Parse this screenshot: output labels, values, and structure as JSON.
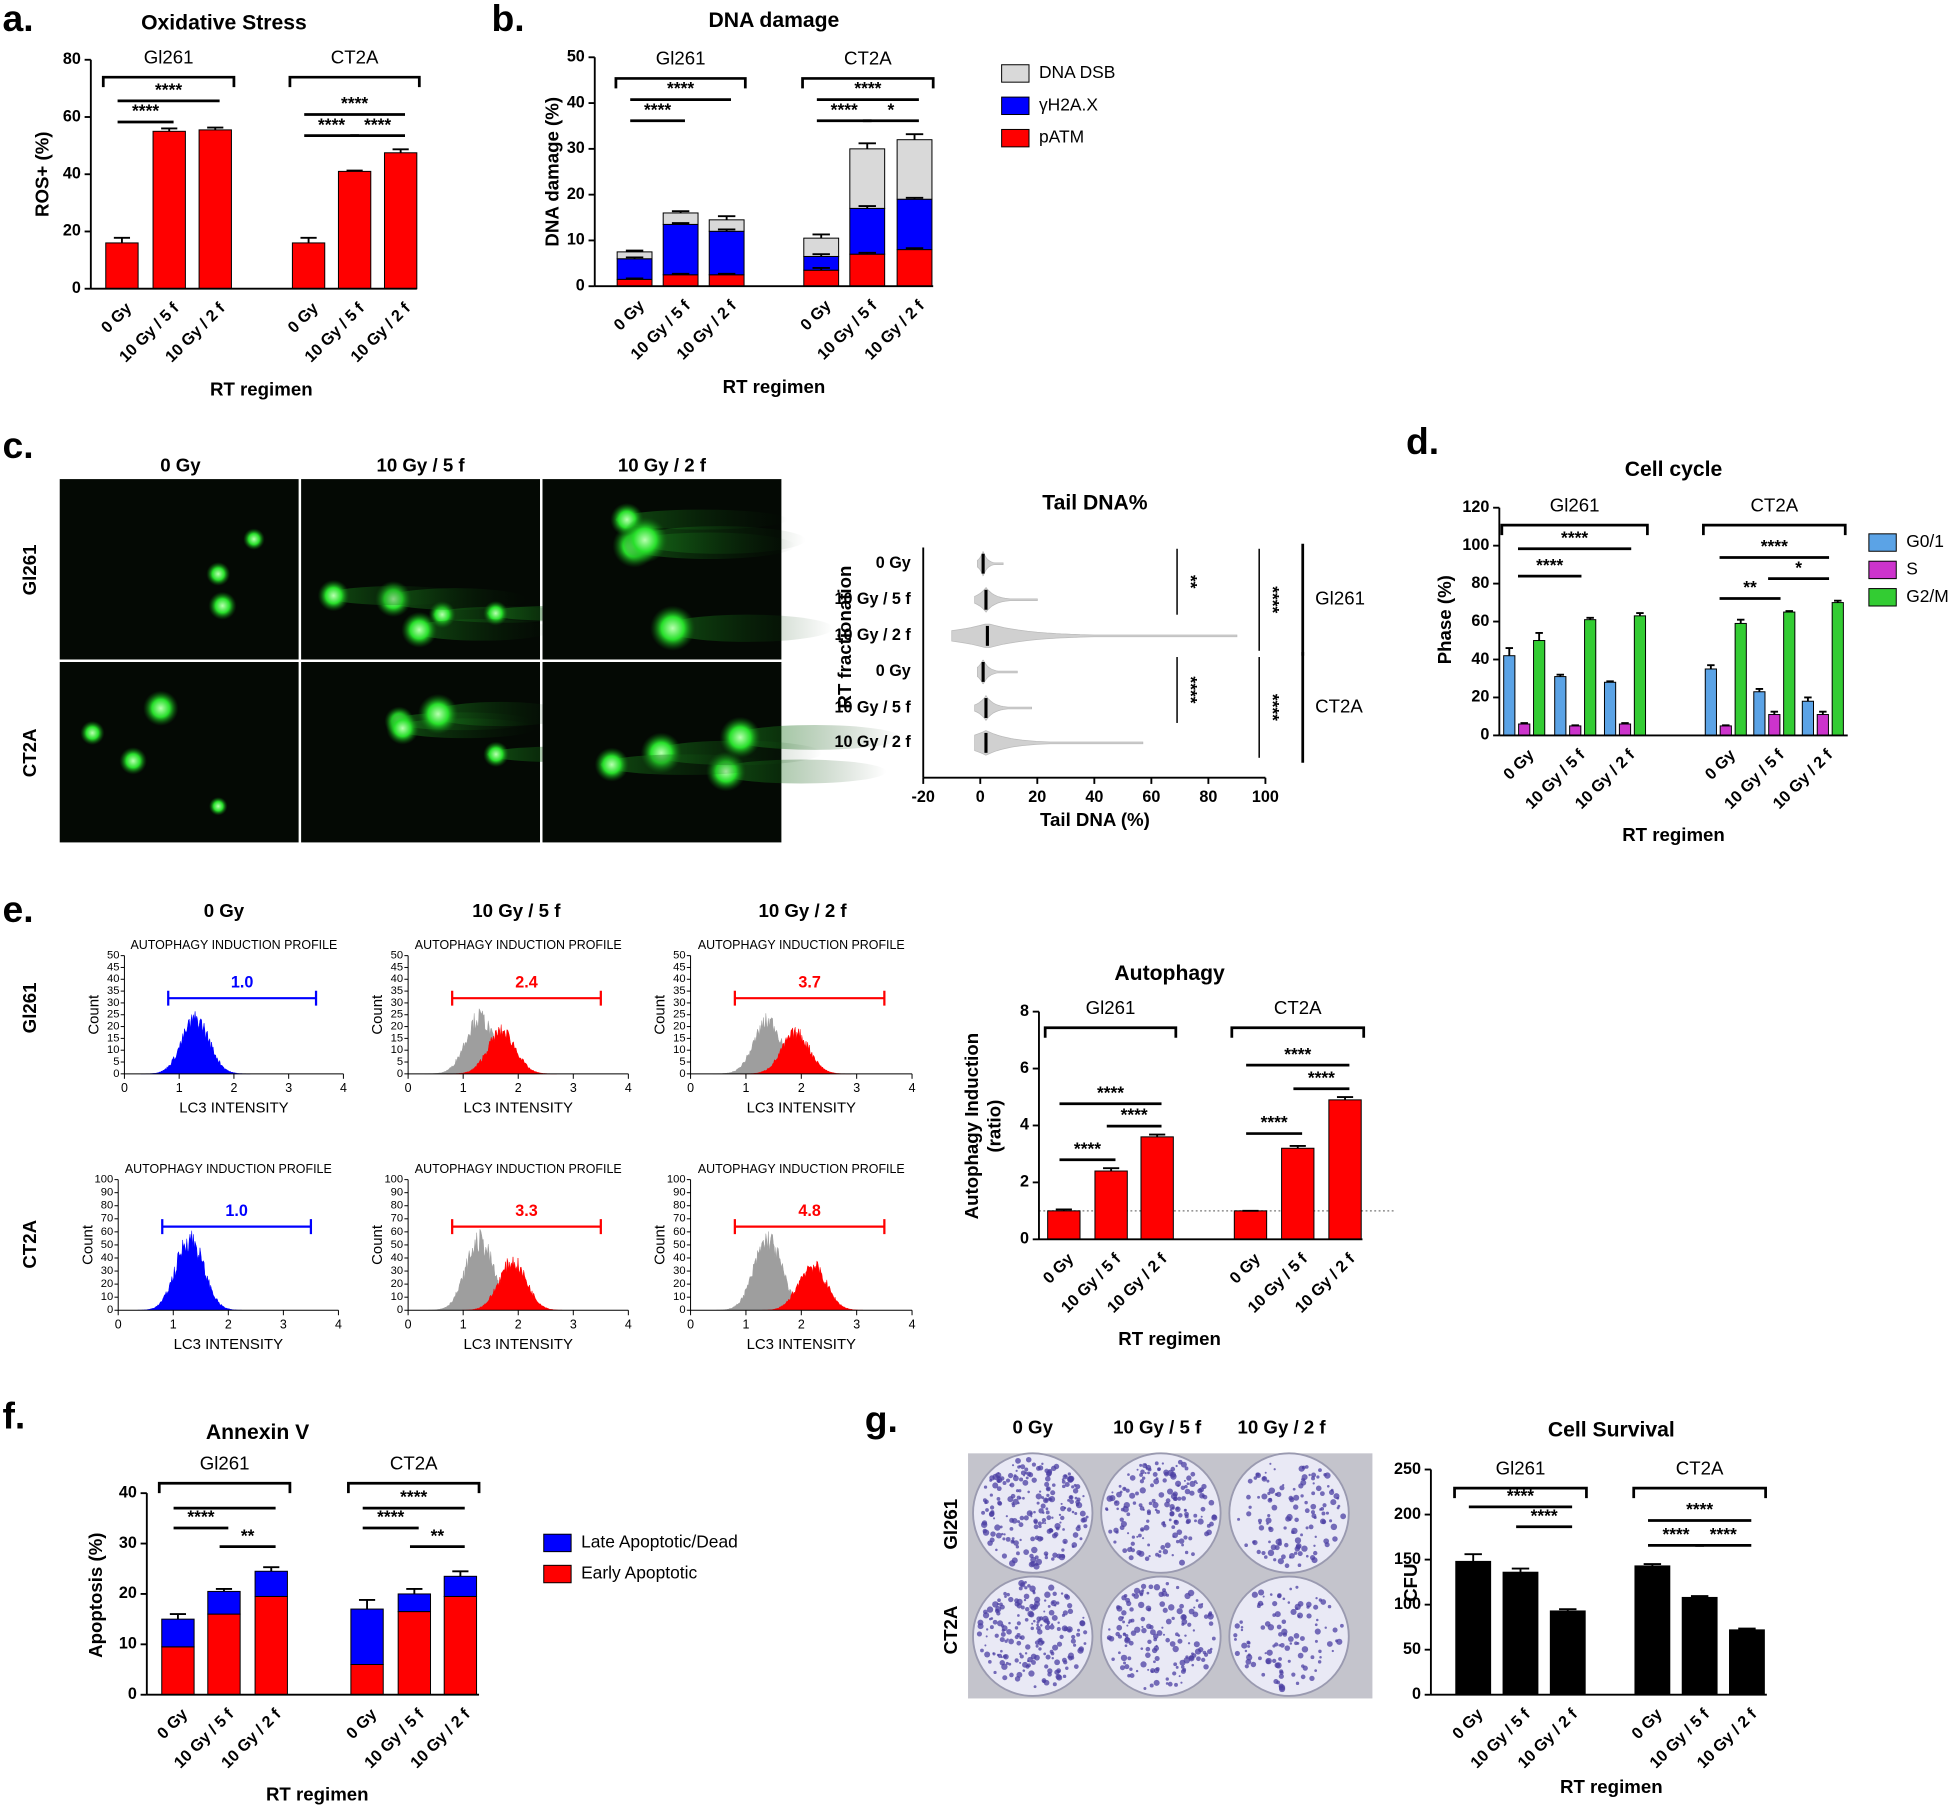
{
  "figure": {
    "panels": {
      "c": "c.",
      "e": "e.",
      "g": "g."
    },
    "comet": {
      "columns": [
        "0 Gy",
        "10 Gy / 5 f",
        "10 Gy / 2 f"
      ],
      "rows": [
        "Gl261",
        "CT2A"
      ]
    },
    "flow": {
      "columns": [
        "0 Gy",
        "10 Gy / 5 f",
        "10 Gy / 2 f"
      ],
      "rows": [
        "Gl261",
        "CT2A"
      ]
    },
    "plates": {
      "columns": [
        "0 Gy",
        "10 Gy / 5 f",
        "10 Gy / 2 f"
      ],
      "rows": [
        "Gl261",
        "CT2A"
      ]
    }
  },
  "chart_data": [
    {
      "type": "bar",
      "panel": "a.",
      "title": "Oxidative Stress",
      "y_label": "ROS+ (%)",
      "x_label": "RT regimen",
      "categories": [
        "0 Gy",
        "10 Gy / 5 f",
        "10 Gy / 2 f",
        "0 Gy",
        "10 Gy / 5 f",
        "10 Gy / 2 f"
      ],
      "groups": [
        {
          "name": "Gl261",
          "from": 0,
          "to": 2
        },
        {
          "name": "CT2A",
          "from": 3,
          "to": 5
        }
      ],
      "series": [
        {
          "color": "#ff0000",
          "values": [
            16,
            55,
            55.5,
            16,
            41,
            47.5
          ],
          "errors": [
            1.8,
            1,
            0.8,
            1.8,
            0.3,
            1.2
          ]
        }
      ],
      "ylim": [
        0,
        80
      ],
      "yticks": [
        0,
        20,
        40,
        60,
        80
      ],
      "comparisons": [
        {
          "label": "****",
          "from": 0,
          "to": 1
        },
        {
          "label": "****",
          "from": 0,
          "to": 2
        },
        {
          "label": "****",
          "from": 3,
          "to": 4
        },
        {
          "label": "****",
          "from": 4,
          "to": 5
        },
        {
          "label": "****",
          "from": 3,
          "to": 5
        }
      ]
    },
    {
      "type": "bar",
      "panel": "b.",
      "title": "DNA damage",
      "y_label": "DNA damage (%)",
      "x_label": "RT regimen",
      "stacked": true,
      "categories": [
        "0 Gy",
        "10 Gy / 5 f",
        "10 Gy / 2 f",
        "0 Gy",
        "10 Gy / 5 f",
        "10 Gy / 2 f"
      ],
      "groups": [
        {
          "name": "Gl261",
          "from": 0,
          "to": 2
        },
        {
          "name": "CT2A",
          "from": 3,
          "to": 5
        }
      ],
      "series": [
        {
          "name": "pATM",
          "color": "#ff0000",
          "values": [
            1.5,
            2.5,
            2.5,
            3.5,
            7,
            8
          ],
          "errors": [
            0.2,
            0.2,
            0.2,
            0.5,
            0.3,
            0.3
          ]
        },
        {
          "name": "γH2A.X",
          "color": "#0000ff",
          "values": [
            4.5,
            11,
            9.5,
            3,
            10,
            11
          ],
          "errors": [
            0.3,
            0.3,
            0.4,
            0.5,
            0.5,
            0.3
          ]
        },
        {
          "name": "DNA DSB",
          "color": "#d9d9d9",
          "values": [
            1.5,
            2.5,
            2.5,
            4,
            13,
            13
          ],
          "errors": [
            0.3,
            0.4,
            0.8,
            0.8,
            1.2,
            1.2
          ]
        }
      ],
      "ylim": [
        0,
        50
      ],
      "yticks": [
        0,
        10,
        20,
        30,
        40,
        50
      ],
      "comparisons": [
        {
          "label": "****",
          "from": 0,
          "to": 1
        },
        {
          "label": "****",
          "from": 0,
          "to": 2
        },
        {
          "label": "****",
          "from": 3,
          "to": 4
        },
        {
          "label": "*",
          "from": 4,
          "to": 5
        },
        {
          "label": "****",
          "from": 3,
          "to": 5
        }
      ]
    },
    {
      "type": "violin",
      "title": "Tail DNA%",
      "x_label": "Tail DNA (%)",
      "y_label": "RT fractionation",
      "categories": [
        "0 Gy",
        "10 Gy / 5 f",
        "10 Gy / 2 f",
        "0 Gy",
        "10 Gy / 5 f",
        "10 Gy / 2 f"
      ],
      "groups": [
        {
          "name": "Gl261",
          "from": 0,
          "to": 2
        },
        {
          "name": "CT2A",
          "from": 3,
          "to": 5
        }
      ],
      "median": [
        1,
        2,
        2.5,
        1,
        2,
        2
      ],
      "min": [
        -1,
        -2,
        -10,
        -1,
        -2,
        -2
      ],
      "max": [
        8,
        20,
        90,
        13,
        18,
        57
      ],
      "xlim": [
        -20,
        100
      ],
      "xticks": [
        -20,
        0,
        20,
        40,
        60,
        80,
        100
      ],
      "comparisons": [
        {
          "label": "**",
          "from": 0,
          "to": 1
        },
        {
          "label": "****",
          "from": 0,
          "to": 2
        },
        {
          "label": "****",
          "from": 3,
          "to": 4
        },
        {
          "label": "****",
          "from": 3,
          "to": 5
        }
      ]
    },
    {
      "type": "bar",
      "panel": "d.",
      "title": "Cell cycle",
      "y_label": "Phase (%)",
      "x_label": "RT regimen",
      "categories": [
        "0 Gy",
        "10 Gy / 5 f",
        "10 Gy / 2 f",
        "0 Gy",
        "10 Gy / 5 f",
        "10 Gy / 2 f"
      ],
      "groups": [
        {
          "name": "Gl261",
          "from": 0,
          "to": 2
        },
        {
          "name": "CT2A",
          "from": 3,
          "to": 5
        }
      ],
      "series": [
        {
          "name": "G0/1",
          "color": "#5ba3e6",
          "values": [
            42,
            31,
            28,
            35,
            23,
            18
          ],
          "errors": [
            4,
            1,
            0.5,
            2,
            1.5,
            2
          ]
        },
        {
          "name": "S",
          "color": "#cc33cc",
          "values": [
            6,
            5,
            6,
            5,
            11,
            11
          ],
          "errors": [
            0.5,
            0.3,
            0.5,
            0.3,
            1.5,
            1.5
          ]
        },
        {
          "name": "G2/M",
          "color": "#33cc33",
          "values": [
            50,
            61,
            63,
            59,
            65,
            70
          ],
          "errors": [
            4,
            1,
            1.5,
            2,
            0.5,
            1
          ]
        }
      ],
      "ylim": [
        0,
        120
      ],
      "yticks": [
        0,
        20,
        40,
        60,
        80,
        100,
        120
      ],
      "comparisons": [
        {
          "label": "****",
          "from": 0,
          "to": 1
        },
        {
          "label": "****",
          "from": 0,
          "to": 2
        },
        {
          "label": "**",
          "from": 3,
          "to": 4
        },
        {
          "label": "*",
          "from": 4,
          "to": 5
        },
        {
          "label": "****",
          "from": 3,
          "to": 5
        }
      ]
    },
    {
      "type": "flowhist",
      "title": "AUTOPHAGY INDUCTION PROFILE",
      "x_label": "LC3 INTENSITY",
      "y_label": "Count",
      "xlim": [
        0,
        4
      ],
      "xticks": [
        0,
        1,
        2,
        3,
        4
      ],
      "ylim": [
        0,
        50
      ],
      "yticks": [
        0,
        5,
        10,
        15,
        20,
        25,
        30,
        35,
        40,
        45,
        50
      ],
      "gate": {
        "from": 0.8,
        "to": 3.5,
        "value": 1,
        "value_label": "1.0",
        "color": "#0000ff"
      },
      "series": [
        {
          "color": "#0000ff",
          "peak": 1.3,
          "height": 27
        }
      ]
    },
    {
      "type": "flowhist",
      "title": "AUTOPHAGY INDUCTION PROFILE",
      "x_label": "LC3 INTENSITY",
      "y_label": "Count",
      "xlim": [
        0,
        4
      ],
      "xticks": [
        0,
        1,
        2,
        3,
        4
      ],
      "ylim": [
        0,
        50
      ],
      "yticks": [
        0,
        5,
        10,
        15,
        20,
        25,
        30,
        35,
        40,
        45,
        50
      ],
      "gate": {
        "from": 0.8,
        "to": 3.5,
        "value": 2.4,
        "color": "#ff0000"
      },
      "series": [
        {
          "color": "#9e9e9e",
          "peak": 1.3,
          "height": 28
        },
        {
          "color": "#ff0000",
          "peak": 1.7,
          "height": 21
        }
      ]
    },
    {
      "type": "flowhist",
      "title": "AUTOPHAGY INDUCTION PROFILE",
      "x_label": "LC3 INTENSITY",
      "y_label": "Count",
      "xlim": [
        0,
        4
      ],
      "xticks": [
        0,
        1,
        2,
        3,
        4
      ],
      "ylim": [
        0,
        50
      ],
      "yticks": [
        0,
        5,
        10,
        15,
        20,
        25,
        30,
        35,
        40,
        45,
        50
      ],
      "gate": {
        "from": 0.8,
        "to": 3.5,
        "value": 3.7,
        "color": "#ff0000"
      },
      "series": [
        {
          "color": "#9e9e9e",
          "peak": 1.4,
          "height": 26
        },
        {
          "color": "#ff0000",
          "peak": 1.9,
          "height": 20
        }
      ]
    },
    {
      "type": "flowhist",
      "title": "AUTOPHAGY INDUCTION PROFILE",
      "x_label": "LC3 INTENSITY",
      "y_label": "Count",
      "xlim": [
        0,
        4
      ],
      "xticks": [
        0,
        1,
        2,
        3,
        4
      ],
      "ylim": [
        0,
        100
      ],
      "yticks": [
        0,
        10,
        20,
        30,
        40,
        50,
        60,
        70,
        80,
        90,
        100
      ],
      "gate": {
        "from": 0.8,
        "to": 3.5,
        "value": 1,
        "value_label": "1.0",
        "color": "#0000ff"
      },
      "series": [
        {
          "color": "#0000ff",
          "peak": 1.3,
          "height": 64
        }
      ]
    },
    {
      "type": "flowhist",
      "title": "AUTOPHAGY INDUCTION PROFILE",
      "x_label": "LC3 INTENSITY",
      "y_label": "Count",
      "xlim": [
        0,
        4
      ],
      "xticks": [
        0,
        1,
        2,
        3,
        4
      ],
      "ylim": [
        0,
        100
      ],
      "yticks": [
        0,
        10,
        20,
        30,
        40,
        50,
        60,
        70,
        80,
        90,
        100
      ],
      "gate": {
        "from": 0.8,
        "to": 3.5,
        "value": 3.3,
        "color": "#ff0000"
      },
      "series": [
        {
          "color": "#9e9e9e",
          "peak": 1.3,
          "height": 62
        },
        {
          "color": "#ff0000",
          "peak": 1.9,
          "height": 43
        }
      ]
    },
    {
      "type": "flowhist",
      "title": "AUTOPHAGY INDUCTION PROFILE",
      "x_label": "LC3 INTENSITY",
      "y_label": "Count",
      "xlim": [
        0,
        4
      ],
      "xticks": [
        0,
        1,
        2,
        3,
        4
      ],
      "ylim": [
        0,
        100
      ],
      "yticks": [
        0,
        10,
        20,
        30,
        40,
        50,
        60,
        70,
        80,
        90,
        100
      ],
      "gate": {
        "from": 0.8,
        "to": 3.5,
        "value": 4.8,
        "color": "#ff0000"
      },
      "series": [
        {
          "color": "#9e9e9e",
          "peak": 1.4,
          "height": 63
        },
        {
          "color": "#ff0000",
          "peak": 2.2,
          "height": 40
        }
      ]
    },
    {
      "type": "bar",
      "title": "Autophagy",
      "y_label": [
        "Autophagy Induction",
        "(ratio)"
      ],
      "x_label": "RT regimen",
      "categories": [
        "0 Gy",
        "10 Gy / 5 f",
        "10 Gy / 2 f",
        "0 Gy",
        "10 Gy / 5 f",
        "10 Gy / 2 f"
      ],
      "groups": [
        {
          "name": "Gl261",
          "from": 0,
          "to": 2
        },
        {
          "name": "CT2A",
          "from": 3,
          "to": 5
        }
      ],
      "series": [
        {
          "color": "#ff0000",
          "values": [
            1,
            2.4,
            3.6,
            1,
            3.2,
            4.9
          ],
          "errors": [
            0.05,
            0.1,
            0.08,
            0,
            0.08,
            0.1
          ]
        }
      ],
      "ylim": [
        0,
        8
      ],
      "yticks": [
        0,
        2,
        4,
        6,
        8
      ],
      "reference_line": 1,
      "comparisons": [
        {
          "label": "****",
          "from": 0,
          "to": 1
        },
        {
          "label": "****",
          "from": 1,
          "to": 2
        },
        {
          "label": "****",
          "from": 0,
          "to": 2
        },
        {
          "label": "****",
          "from": 3,
          "to": 4
        },
        {
          "label": "****",
          "from": 4,
          "to": 5
        },
        {
          "label": "****",
          "from": 3,
          "to": 5
        }
      ]
    },
    {
      "type": "bar",
      "panel": "f.",
      "title": "Annexin V",
      "y_label": "Apoptosis (%)",
      "x_label": "RT regimen",
      "stacked": true,
      "categories": [
        "0 Gy",
        "10 Gy / 5 f",
        "10 Gy / 2 f",
        "0 Gy",
        "10 Gy / 5 f",
        "10 Gy / 2 f"
      ],
      "groups": [
        {
          "name": "Gl261",
          "from": 0,
          "to": 2
        },
        {
          "name": "CT2A",
          "from": 3,
          "to": 5
        }
      ],
      "series": [
        {
          "name": "Early Apoptotic",
          "color": "#ff0000",
          "values": [
            9.5,
            16,
            19.5,
            6,
            16.5,
            19.5
          ]
        },
        {
          "name": "Late Apoptotic/Dead",
          "color": "#0000ff",
          "values": [
            5.5,
            4.5,
            5,
            11,
            3.5,
            4
          ],
          "errors": [
            1,
            0.5,
            0.8,
            1.8,
            1,
            1
          ]
        }
      ],
      "ylim": [
        0,
        40
      ],
      "yticks": [
        0,
        10,
        20,
        30,
        40
      ],
      "comparisons": [
        {
          "from": 0,
          "to": 2
        },
        {
          "label": "****",
          "from": 0,
          "to": 1
        },
        {
          "label": "**",
          "from": 1,
          "to": 2
        },
        {
          "label": "****",
          "from": 3,
          "to": 5
        },
        {
          "label": "****",
          "from": 3,
          "to": 4
        },
        {
          "label": "**",
          "from": 4,
          "to": 5
        }
      ]
    },
    {
      "type": "bar",
      "title": "Cell Survival",
      "y_label": "CFU",
      "x_label": "RT regimen",
      "categories": [
        "0 Gy",
        "10 Gy / 5 f",
        "10 Gy / 2 f",
        "0 Gy",
        "10 Gy / 5 f",
        "10 Gy / 2 f"
      ],
      "groups": [
        {
          "name": "Gl261",
          "from": 0,
          "to": 2
        },
        {
          "name": "CT2A",
          "from": 3,
          "to": 5
        }
      ],
      "series": [
        {
          "color": "#000000",
          "values": [
            148,
            136,
            93,
            143,
            108,
            72
          ],
          "errors": [
            8,
            4,
            2,
            2,
            1.5,
            1.5
          ]
        }
      ],
      "ylim": [
        0,
        250
      ],
      "yticks": [
        0,
        50,
        100,
        150,
        200,
        250
      ],
      "comparisons": [
        {
          "label": "****",
          "from": 0,
          "to": 2
        },
        {
          "label": "****",
          "from": 1,
          "to": 2
        },
        {
          "label": "****",
          "from": 3,
          "to": 5
        },
        {
          "label": "****",
          "from": 3,
          "to": 4
        },
        {
          "label": "****",
          "from": 4,
          "to": 5
        }
      ]
    }
  ]
}
